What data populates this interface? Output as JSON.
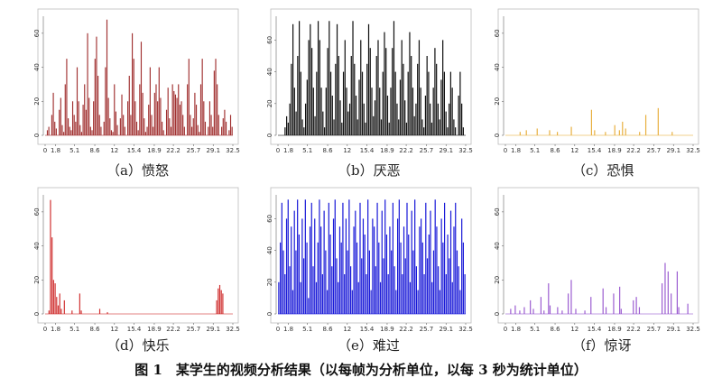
{
  "figure": {
    "caption": "图 1　某学生的视频分析结果（以每帧为分析单位，以每 3 秒为统计单位）"
  },
  "chart_data": [
    {
      "type": "bar",
      "panel_label": "（a）愤怒",
      "color": "#a03030",
      "x_tick_labels": [
        "0",
        "1.8",
        "5.1",
        "8.6",
        "12",
        "15.4",
        "18.9",
        "22.2",
        "25.7",
        "29.1",
        "32.5"
      ],
      "y_tick_labels": [
        "0",
        "20",
        "40",
        "60"
      ],
      "ylim": [
        0,
        70
      ],
      "xlim": [
        0,
        32.5
      ],
      "grid": false,
      "values": [
        0,
        3,
        5,
        0,
        12,
        25,
        8,
        4,
        0,
        15,
        22,
        6,
        2,
        30,
        45,
        10,
        5,
        3,
        20,
        12,
        8,
        40,
        20,
        6,
        2,
        18,
        30,
        15,
        60,
        22,
        5,
        3,
        20,
        45,
        58,
        35,
        12,
        5,
        0,
        8,
        40,
        68,
        22,
        10,
        3,
        2,
        30,
        14,
        6,
        0,
        10,
        24,
        12,
        5,
        0,
        20,
        35,
        12,
        60,
        45,
        20,
        8,
        3,
        30,
        55,
        25,
        10,
        2,
        5,
        18,
        40,
        12,
        5,
        25,
        30,
        20,
        40,
        22,
        8,
        3,
        0,
        15,
        28,
        10,
        5,
        30,
        26,
        24,
        22,
        30,
        18,
        20,
        12,
        5,
        0,
        30,
        45,
        12,
        5,
        10,
        25,
        18,
        6,
        2,
        30,
        45,
        20,
        8,
        0,
        5,
        20,
        12,
        5,
        38,
        45,
        30,
        12,
        0,
        5,
        10,
        15,
        8,
        0,
        3,
        12,
        5
      ]
    },
    {
      "type": "bar",
      "panel_label": "（b）厌恶",
      "color": "#111111",
      "x_tick_labels": [
        "0",
        "1.8",
        "5.1",
        "8.6",
        "12",
        "15.4",
        "18.9",
        "22.2",
        "25.7",
        "29.1",
        "32.5"
      ],
      "y_tick_labels": [
        "0",
        "20",
        "40",
        "60"
      ],
      "ylim": [
        0,
        75
      ],
      "xlim": [
        0,
        32.5
      ],
      "grid": false,
      "values": [
        0,
        0,
        0,
        0,
        5,
        12,
        8,
        20,
        45,
        70,
        30,
        15,
        50,
        72,
        40,
        10,
        5,
        20,
        35,
        60,
        70,
        55,
        30,
        12,
        40,
        72,
        60,
        30,
        15,
        5,
        30,
        55,
        72,
        40,
        25,
        10,
        45,
        70,
        50,
        22,
        8,
        40,
        60,
        30,
        15,
        20,
        50,
        72,
        45,
        25,
        10,
        35,
        60,
        40,
        20,
        8,
        45,
        70,
        55,
        30,
        12,
        22,
        50,
        60,
        30,
        10,
        40,
        65,
        55,
        25,
        8,
        30,
        55,
        72,
        40,
        20,
        10,
        35,
        60,
        45,
        22,
        8,
        40,
        65,
        50,
        30,
        12,
        20,
        45,
        60,
        30,
        10,
        5,
        25,
        50,
        40,
        20,
        8,
        30,
        55,
        45,
        20,
        10,
        35,
        60,
        40,
        15,
        5,
        20,
        40,
        30,
        10,
        5,
        0,
        25,
        40,
        20,
        5,
        0
      ]
    },
    {
      "type": "bar",
      "panel_label": "（c）恐惧",
      "color": "#e8b040",
      "x_tick_labels": [
        "0",
        "1.8",
        "5.1",
        "8.6",
        "12",
        "15.4",
        "18.9",
        "22.2",
        "25.7",
        "29.1",
        "32.5"
      ],
      "y_tick_labels": [
        "0",
        "20",
        "40",
        "60"
      ],
      "ylim": [
        0,
        70
      ],
      "xlim": [
        0,
        32.5
      ],
      "grid": false,
      "values": [
        0,
        0,
        0,
        0,
        0,
        0,
        0,
        0,
        0,
        2,
        0,
        0,
        0,
        3,
        0,
        0,
        0,
        0,
        0,
        0,
        4,
        0,
        0,
        0,
        0,
        0,
        0,
        0,
        3,
        0,
        0,
        0,
        0,
        2,
        0,
        0,
        0,
        0,
        0,
        0,
        0,
        0,
        5,
        0,
        0,
        0,
        0,
        0,
        0,
        0,
        0,
        0,
        0,
        0,
        0,
        15,
        0,
        3,
        0,
        0,
        0,
        0,
        0,
        0,
        2,
        0,
        0,
        0,
        0,
        0,
        6,
        0,
        0,
        3,
        0,
        8,
        0,
        4,
        0,
        0,
        0,
        0,
        0,
        0,
        0,
        0,
        2,
        0,
        0,
        0,
        12,
        0,
        0,
        0,
        0,
        0,
        0,
        0,
        16,
        0,
        0,
        0,
        0,
        0,
        0,
        0,
        0,
        2,
        0,
        0,
        0,
        0,
        0,
        0,
        0,
        0,
        0,
        0,
        0,
        0,
        0
      ]
    },
    {
      "type": "bar",
      "panel_label": "（d）快乐",
      "color": "#d03030",
      "x_tick_labels": [
        "0",
        "1.8",
        "5.1",
        "8.6",
        "12",
        "15.4",
        "18.9",
        "22.2",
        "25.7",
        "29.1",
        "32.5"
      ],
      "y_tick_labels": [
        "0",
        "20",
        "40",
        "60"
      ],
      "ylim": [
        0,
        70
      ],
      "xlim": [
        0,
        32.5
      ],
      "grid": false,
      "values": [
        0,
        0,
        2,
        67,
        45,
        20,
        18,
        10,
        5,
        12,
        3,
        0,
        8,
        0,
        0,
        0,
        0,
        2,
        0,
        0,
        0,
        0,
        12,
        2,
        0,
        0,
        0,
        0,
        0,
        0,
        0,
        0,
        0,
        0,
        0,
        3,
        0,
        0,
        0,
        0,
        1,
        0,
        0,
        0,
        0,
        0,
        0,
        0,
        0,
        0,
        0,
        0,
        0,
        0,
        0,
        0,
        0,
        0,
        0,
        0,
        0,
        0,
        0,
        0,
        0,
        0,
        0,
        0,
        0,
        0,
        0,
        0,
        0,
        0,
        0,
        0,
        0,
        0,
        0,
        0,
        0,
        0,
        0,
        0,
        0,
        0,
        0,
        0,
        0,
        0,
        0,
        0,
        0,
        0,
        0,
        0,
        0,
        0,
        0,
        0,
        0,
        0,
        0,
        0,
        0,
        0,
        0,
        0,
        0,
        0,
        0,
        8,
        15,
        17,
        14,
        12,
        0,
        0,
        0,
        0,
        0,
        0
      ]
    },
    {
      "type": "bar",
      "panel_label": "（e）难过",
      "color": "#1a1ad8",
      "x_tick_labels": [
        "0",
        "1.8",
        "5.1",
        "8.6",
        "12",
        "15.4",
        "18.9",
        "22.2",
        "25.7",
        "29.1",
        "32.5"
      ],
      "y_tick_labels": [
        "0",
        "20",
        "40",
        "60"
      ],
      "ylim": [
        0,
        75
      ],
      "xlim": [
        0,
        32.5
      ],
      "grid": false,
      "values": [
        20,
        45,
        70,
        40,
        25,
        60,
        72,
        30,
        55,
        15,
        65,
        40,
        72,
        50,
        20,
        60,
        35,
        72,
        45,
        10,
        55,
        70,
        30,
        60,
        20,
        45,
        72,
        55,
        25,
        65,
        40,
        15,
        70,
        50,
        30,
        60,
        72,
        35,
        20,
        55,
        45,
        70,
        25,
        60,
        40,
        72,
        30,
        15,
        55,
        65,
        45,
        20,
        70,
        35,
        60,
        50,
        25,
        72,
        40,
        15,
        60,
        55,
        30,
        70,
        45,
        20,
        65,
        35,
        72,
        50,
        25,
        55,
        40,
        70,
        30,
        15,
        60,
        72,
        45,
        25,
        55,
        35,
        70,
        50,
        20,
        65,
        40,
        72,
        30,
        15,
        55,
        60,
        45,
        25,
        70,
        35,
        50,
        65,
        20,
        40,
        72,
        55,
        30,
        15,
        60,
        45,
        70,
        25,
        50,
        35,
        65,
        20,
        55,
        70,
        40,
        30,
        15,
        60,
        45,
        25
      ]
    },
    {
      "type": "bar",
      "panel_label": "（f）惊讶",
      "color": "#9a5ad0",
      "x_tick_labels": [
        "0",
        "1.8",
        "5.1",
        "8.6",
        "12",
        "15.4",
        "18.9",
        "22.2",
        "25.7",
        "29.1",
        "32.5"
      ],
      "y_tick_labels": [
        "0",
        "20",
        "40",
        "60"
      ],
      "ylim": [
        0,
        70
      ],
      "xlim": [
        0,
        32.5
      ],
      "grid": false,
      "values": [
        0,
        0,
        0,
        3,
        0,
        0,
        5,
        0,
        0,
        2,
        0,
        0,
        4,
        0,
        0,
        0,
        8,
        0,
        3,
        0,
        0,
        0,
        0,
        10,
        0,
        2,
        0,
        0,
        18,
        5,
        0,
        0,
        0,
        0,
        4,
        0,
        0,
        2,
        0,
        0,
        0,
        12,
        0,
        20,
        0,
        0,
        3,
        0,
        0,
        0,
        0,
        0,
        2,
        0,
        0,
        0,
        10,
        0,
        0,
        0,
        0,
        0,
        0,
        0,
        15,
        0,
        4,
        0,
        0,
        0,
        0,
        12,
        0,
        0,
        0,
        16,
        3,
        0,
        0,
        0,
        0,
        0,
        0,
        0,
        8,
        0,
        10,
        0,
        4,
        0,
        0,
        0,
        0,
        0,
        0,
        0,
        0,
        0,
        0,
        0,
        0,
        0,
        0,
        18,
        0,
        30,
        0,
        25,
        0,
        12,
        0,
        0,
        0,
        25,
        4,
        0,
        0,
        0,
        0,
        0,
        6,
        0,
        0,
        0
      ]
    }
  ]
}
